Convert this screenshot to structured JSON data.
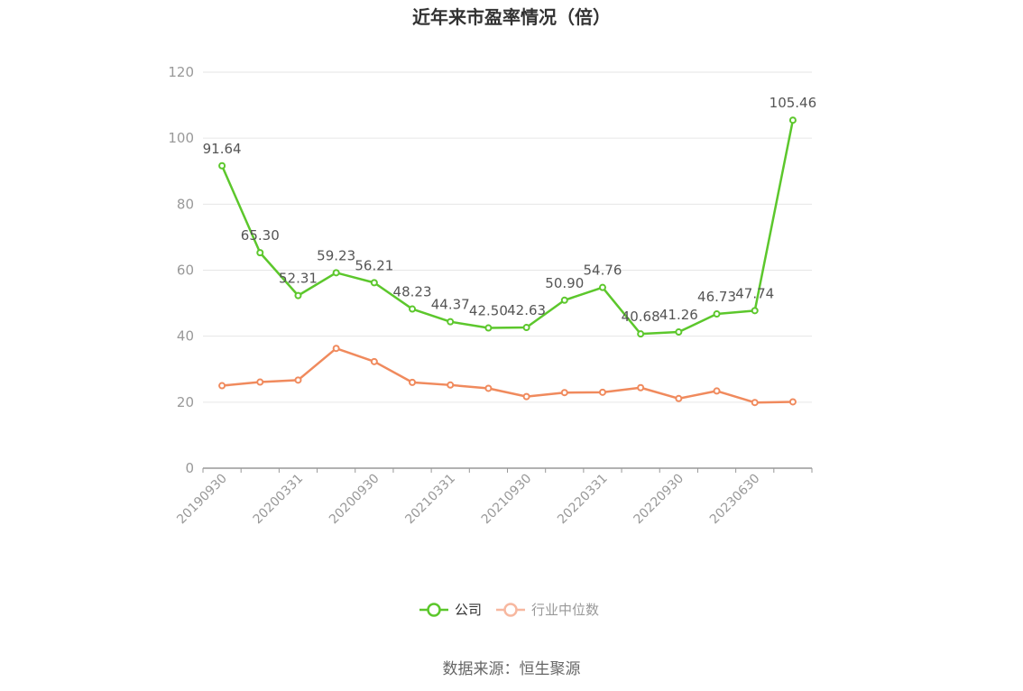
{
  "chart_data": {
    "type": "line",
    "title": "近年来市盈率情况（倍）",
    "source": "数据来源：恒生聚源",
    "ylim": [
      0,
      120
    ],
    "yticks": [
      "0",
      "20",
      "40",
      "60",
      "80",
      "100",
      "120"
    ],
    "x_tick_labels": [
      "20190930",
      "20200331",
      "20200930",
      "20210331",
      "20210930",
      "20220331",
      "20220930",
      "20230630"
    ],
    "grid": true,
    "legend_position": "bottom",
    "series": [
      {
        "name": "公司",
        "color": "#5cc72c",
        "values": [
          91.64,
          65.3,
          52.31,
          59.23,
          56.21,
          48.23,
          44.37,
          42.5,
          42.63,
          50.9,
          54.76,
          40.68,
          41.26,
          46.73,
          47.74,
          105.46
        ],
        "labels": [
          "91.64",
          "65.30",
          "52.31",
          "59.23",
          "56.21",
          "48.23",
          "44.37",
          "42.50",
          "42.63",
          "50.90",
          "54.76",
          "40.68",
          "41.26",
          "46.73",
          "47.74",
          "105.46"
        ]
      },
      {
        "name": "行业中位数",
        "color": "#f08a5d",
        "values": [
          25.0,
          26.1,
          26.7,
          36.3,
          32.3,
          26.0,
          25.2,
          24.2,
          21.7,
          22.9,
          23.0,
          24.4,
          21.1,
          23.4,
          19.9,
          20.1
        ]
      }
    ]
  }
}
